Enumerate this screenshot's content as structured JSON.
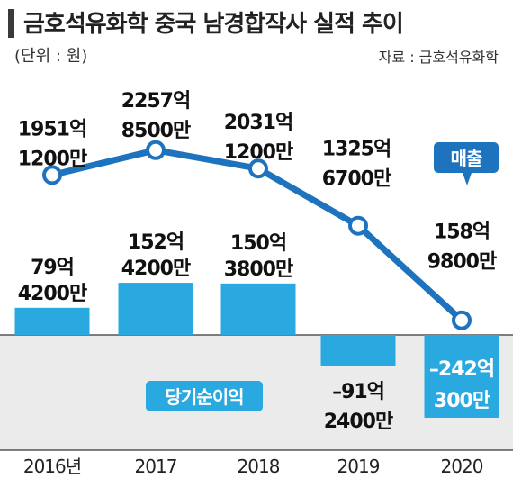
{
  "header": {
    "title": "금호석유화학 중국 남경합작사 실적 추이",
    "unit": "(단위 : 원)",
    "source": "자료 : 금호석유화학"
  },
  "colors": {
    "line": "#1e73be",
    "bar": "#2aa9e0",
    "negative_zone": "#ebebeb",
    "badge": "#1e73be",
    "badge_alt": "#2aa9e0"
  },
  "chart_data": [
    {
      "type": "line",
      "name": "매출",
      "categories": [
        "2016년",
        "2017",
        "2018",
        "2019",
        "2020"
      ],
      "values": [
        1951.12,
        2257.85,
        2031.12,
        1325.67,
        158.98
      ],
      "value_unit": "억원",
      "data_labels": [
        [
          "1951억",
          "1200만"
        ],
        [
          "2257억",
          "8500만"
        ],
        [
          "2031억",
          "1200만"
        ],
        [
          "1325억",
          "6700만"
        ],
        [
          "158억",
          "9800만"
        ]
      ],
      "legend_badge": "매출"
    },
    {
      "type": "bar",
      "name": "당기순이익",
      "categories": [
        "2016년",
        "2017",
        "2018",
        "2019",
        "2020"
      ],
      "values": [
        79.42,
        152.42,
        150.38,
        -91.24,
        -242.03
      ],
      "value_unit": "억원",
      "data_labels": [
        [
          "79억",
          "4200만"
        ],
        [
          "152억",
          "4200만"
        ],
        [
          "150억",
          "3800만"
        ],
        [
          "–91억",
          "2400만"
        ],
        [
          "–242억",
          "300만"
        ]
      ],
      "legend_badge": "당기순이익"
    }
  ]
}
